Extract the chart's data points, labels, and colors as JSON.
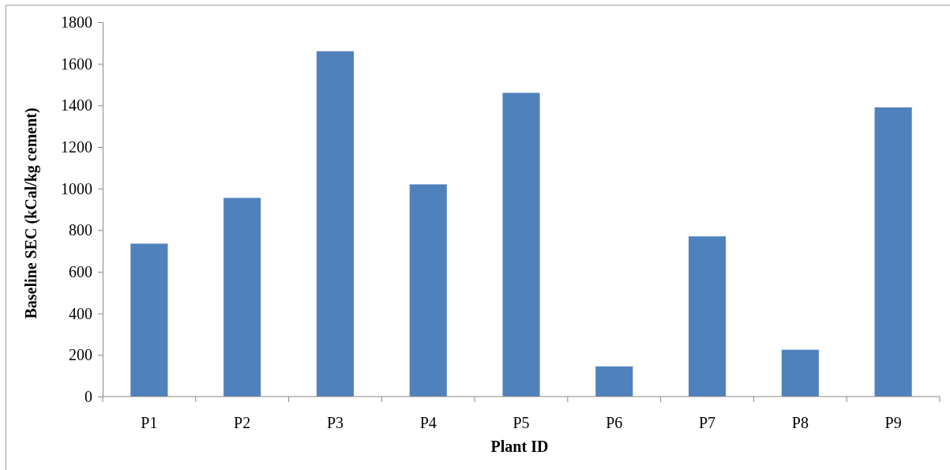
{
  "chart_data": {
    "type": "bar",
    "xlabel": "Plant ID",
    "ylabel": "Baseline SEC (kCal/kg cement)",
    "categories": [
      "P1",
      "P2",
      "P3",
      "P4",
      "P5",
      "P6",
      "P7",
      "P8",
      "P9"
    ],
    "values": [
      735,
      955,
      1660,
      1020,
      1460,
      145,
      770,
      225,
      1390
    ],
    "color": "#4f81bd",
    "ylim": [
      0,
      1800
    ],
    "yticks": [
      0,
      200,
      400,
      600,
      800,
      1000,
      1200,
      1400,
      1600,
      1800
    ],
    "grid": false
  }
}
